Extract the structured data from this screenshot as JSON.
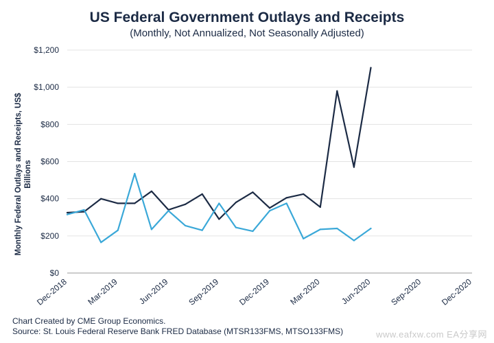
{
  "chart_data": {
    "type": "line",
    "title": "US Federal Government Outlays and Receipts",
    "subtitle": "(Monthly, Not Annualized, Not Seasonally Adjusted)",
    "xlabel": "",
    "ylabel": "Monthly Federal Outlays and Receipts, US$ Billions",
    "ylim": [
      0,
      1200
    ],
    "yticks": [
      0,
      200,
      400,
      600,
      800,
      1000,
      1200
    ],
    "ytick_labels": [
      "$0",
      "$200",
      "$400",
      "$600",
      "$800",
      "$1,000",
      "$1,200"
    ],
    "x_tick_labels": [
      "Dec-2018",
      "Mar-2019",
      "Jun-2019",
      "Sep-2019",
      "Dec-2019",
      "Mar-2020",
      "Jun-2020",
      "Sep-2020",
      "Dec-2020"
    ],
    "x_domain_months": [
      "Dec-2018",
      "Dec-2020"
    ],
    "grid": true,
    "legend": "none",
    "series": [
      {
        "color": "#1b2a44",
        "x": [
          "Dec-2018",
          "Jan-2019",
          "Feb-2019",
          "Mar-2019",
          "Apr-2019",
          "May-2019",
          "Jun-2019",
          "Jul-2019",
          "Aug-2019",
          "Sep-2019",
          "Oct-2019",
          "Nov-2019",
          "Dec-2019",
          "Jan-2020",
          "Feb-2020",
          "Mar-2020",
          "Apr-2020",
          "May-2020",
          "Jun-2020"
        ],
        "values": [
          325,
          330,
          400,
          375,
          375,
          440,
          340,
          370,
          425,
          290,
          380,
          435,
          350,
          405,
          425,
          355,
          980,
          570,
          1105
        ]
      },
      {
        "color": "#3aa8d8",
        "x": [
          "Dec-2018",
          "Jan-2019",
          "Feb-2019",
          "Mar-2019",
          "Apr-2019",
          "May-2019",
          "Jun-2019",
          "Jul-2019",
          "Aug-2019",
          "Sep-2019",
          "Oct-2019",
          "Nov-2019",
          "Dec-2019",
          "Jan-2020",
          "Feb-2020",
          "Mar-2020",
          "Apr-2020",
          "May-2020",
          "Jun-2020"
        ],
        "values": [
          315,
          340,
          165,
          230,
          535,
          235,
          335,
          255,
          230,
          375,
          245,
          225,
          335,
          375,
          185,
          235,
          240,
          175,
          240
        ]
      }
    ]
  },
  "footer": {
    "credit": "Chart Created by CME Group Economics.",
    "source": "Source: St. Louis Federal Reserve Bank FRED Database (MTSR133FMS, MTSO133FMS)"
  },
  "watermark": "www.eafxw.com  EA分享网"
}
